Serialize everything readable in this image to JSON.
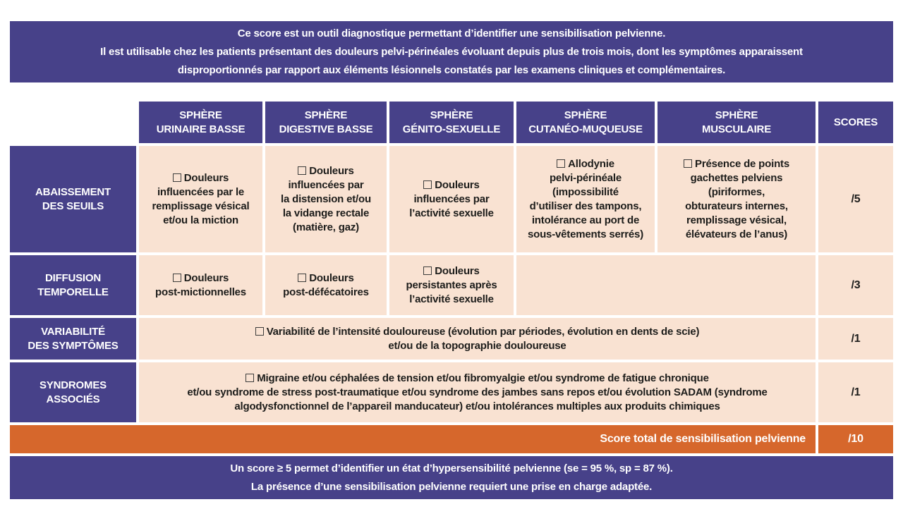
{
  "colors": {
    "purple": "#474189",
    "beige": "#f9e2d2",
    "orange": "#d6672c",
    "ink": "#1d1d1b"
  },
  "top_banner": {
    "lines": [
      "Ce score est un outil diagnostique permettant d’identifier une sensibilisation pelvienne.",
      "Il est utilisable chez les patients présentant des douleurs pelvi-périnéales évoluant depuis plus de trois mois, dont les symptômes apparaissent",
      "disproportionnés par rapport aux éléments lésionnels constatés par les examens cliniques et complémentaires."
    ]
  },
  "table": {
    "headers": [
      {
        "label": [
          "SPHÈRE",
          "URINAIRE BASSE"
        ]
      },
      {
        "label": [
          "SPHÈRE",
          "DIGESTIVE BASSE"
        ]
      },
      {
        "label": [
          "SPHÈRE",
          "GÉNITO-SEXUELLE"
        ]
      },
      {
        "label": [
          "SPHÈRE",
          "CUTANÉO-MUQUEUSE"
        ]
      },
      {
        "label": [
          "SPHÈRE",
          "MUSCULAIRE"
        ]
      }
    ],
    "scores_header": "SCORES",
    "rows": [
      {
        "label": [
          "ABAISSEMENT",
          "DES SEUILS"
        ],
        "cells": [
          {
            "text": [
              "Douleurs",
              "influencées par le",
              "remplissage vésical",
              "et/ou la miction"
            ]
          },
          {
            "text": [
              "Douleurs",
              "influencées par",
              "la distension et/ou",
              "la vidange rectale",
              "(matière, gaz)"
            ]
          },
          {
            "text": [
              "Douleurs",
              "influencées par",
              "l’activité sexuelle"
            ]
          },
          {
            "text": [
              "Allodynie",
              "pelvi-périnéale",
              "(impossibilité",
              "d’utiliser des tampons,",
              "intolérance au port de",
              "sous-vêtements serrés)"
            ]
          },
          {
            "text": [
              "Présence de points",
              "gachettes pelviens",
              "(piriformes,",
              "obturateurs internes,",
              "remplissage vésical,",
              "élévateurs de l’anus)"
            ]
          }
        ],
        "score": "/5"
      },
      {
        "label": [
          "DIFFUSION",
          "TEMPORELLE"
        ],
        "cells": [
          {
            "text": [
              "Douleurs",
              "post-mictionnelles"
            ]
          },
          {
            "text": [
              "Douleurs",
              "post-défécatoires"
            ]
          },
          {
            "text": [
              "Douleurs",
              "persistantes après",
              "l’activité sexuelle"
            ]
          }
        ],
        "score": "/3"
      },
      {
        "label": [
          "VARIABILITÉ",
          "DES SYMPTÔMES"
        ],
        "merged_text": [
          "Variabilité de l’intensité douloureuse (évolution par périodes, évolution en dents de scie)",
          "et/ou de la topographie douloureuse"
        ],
        "score": "/1"
      },
      {
        "label": [
          "SYNDROMES",
          "ASSOCIÉS"
        ],
        "merged_text": [
          "Migraine et/ou céphalées de tension et/ou fibromyalgie et/ou syndrome de fatigue chronique",
          "et/ou syndrome de stress post-traumatique et/ou syndrome des jambes sans repos et/ou évolution SADAM (syndrome",
          "algodysfonctionnel de l’appareil manducateur) et/ou intolérances multiples aux produits chimiques"
        ],
        "score": "/1"
      }
    ],
    "total_row": {
      "label": "Score total de sensibilisation pelvienne",
      "score": "/10"
    }
  },
  "bottom_banner": {
    "lines": [
      "Un score ≥ 5 permet d’identifier un état d’hypersensibilité pelvienne (se = 95 %, sp = 87 %).",
      "La présence d’une sensibilisation pelvienne requiert une prise en charge adaptée."
    ]
  }
}
